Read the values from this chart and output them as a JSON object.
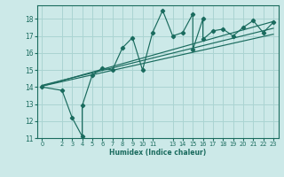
{
  "xlabel": "Humidex (Indice chaleur)",
  "bg_color": "#cce9e8",
  "grid_color": "#aad4d2",
  "line_color": "#1a6b5e",
  "xlim": [
    -0.5,
    23.5
  ],
  "ylim": [
    11,
    18.8
  ],
  "xticks": [
    0,
    2,
    3,
    4,
    5,
    6,
    7,
    8,
    9,
    10,
    11,
    13,
    14,
    15,
    16,
    17,
    18,
    19,
    20,
    21,
    22,
    23
  ],
  "xtick_labels": [
    "0",
    "2",
    "3",
    "4",
    "5",
    "6",
    "7",
    "8",
    "9",
    "10",
    "11",
    "13",
    "14",
    "15",
    "16",
    "17",
    "18",
    "19",
    "20",
    "21",
    "22",
    "23"
  ],
  "yticks": [
    11,
    12,
    13,
    14,
    15,
    16,
    17,
    18
  ],
  "scatter_x": [
    0,
    2,
    3,
    4,
    4,
    5,
    6,
    7,
    8,
    9,
    10,
    11,
    12,
    13,
    14,
    15,
    15,
    16,
    16,
    17,
    18,
    19,
    20,
    21,
    22,
    23
  ],
  "scatter_y": [
    14.0,
    13.8,
    12.2,
    11.1,
    12.9,
    14.7,
    15.1,
    15.0,
    16.3,
    16.9,
    15.0,
    17.2,
    18.5,
    17.0,
    17.2,
    18.3,
    16.2,
    18.0,
    16.8,
    17.3,
    17.4,
    17.0,
    17.5,
    17.9,
    17.2,
    17.8
  ],
  "regression_lines": [
    {
      "x": [
        0,
        23
      ],
      "y": [
        14.05,
        17.85
      ]
    },
    {
      "x": [
        0,
        23
      ],
      "y": [
        14.05,
        17.1
      ]
    },
    {
      "x": [
        0,
        23
      ],
      "y": [
        14.1,
        17.45
      ]
    }
  ]
}
